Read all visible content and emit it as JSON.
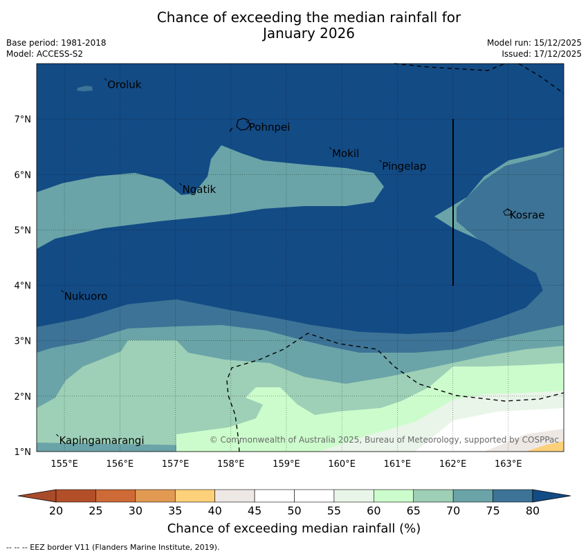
{
  "header": {
    "title_line1": "Chance of exceeding the median rainfall for",
    "title_line2": "January 2026",
    "base_period": "Base period: 1981-2018",
    "model": "Model: ACCESS-S2",
    "model_run": "Model run: 15/12/2025",
    "issued": "Issued: 17/12/2025"
  },
  "map": {
    "lon_range": [
      154.5,
      164.0
    ],
    "lat_range": [
      1.0,
      8.0
    ],
    "lon_ticks": [
      155,
      156,
      157,
      158,
      159,
      160,
      161,
      162,
      163
    ],
    "lon_tick_labels": [
      "155°E",
      "156°E",
      "157°E",
      "158°E",
      "159°E",
      "160°E",
      "161°E",
      "162°E",
      "163°E"
    ],
    "lat_ticks": [
      1,
      2,
      3,
      4,
      5,
      6,
      7
    ],
    "lat_tick_labels": [
      "1°N",
      "2°N",
      "3°N",
      "4°N",
      "5°N",
      "6°N",
      "7°N"
    ],
    "places": [
      {
        "name": "Oroluk",
        "lon": 155.75,
        "lat": 7.67
      },
      {
        "name": "Pohnpei",
        "lon": 158.3,
        "lat": 6.9
      },
      {
        "name": "Mokil",
        "lon": 159.8,
        "lat": 6.43
      },
      {
        "name": "Pingelap",
        "lon": 160.7,
        "lat": 6.2
      },
      {
        "name": "Ngatik",
        "lon": 157.1,
        "lat": 5.78
      },
      {
        "name": "Kosrae",
        "lon": 163.0,
        "lat": 5.32
      },
      {
        "name": "Nukuoro",
        "lon": 154.97,
        "lat": 3.85
      },
      {
        "name": "Kapingamarangi",
        "lon": 154.88,
        "lat": 1.25
      }
    ],
    "copyright": "© Commonwealth of Australia 2025, Bureau of Meteorology, supported by COSPPac"
  },
  "colorbar": {
    "ticks": [
      "20",
      "25",
      "30",
      "35",
      "40",
      "45",
      "50",
      "55",
      "60",
      "65",
      "70",
      "75",
      "80"
    ],
    "colors": [
      "#a84b2a",
      "#b34f28",
      "#ce6a35",
      "#e29a52",
      "#fdd07a",
      "#ede8e4",
      "#ffffff",
      "#ffffff",
      "#e9f5e8",
      "#ccfccc",
      "#9dd0b6",
      "#6aa4a8",
      "#3d7396",
      "#134b85"
    ],
    "label": "Chance of exceeding median rainfall (%)"
  },
  "legend_note": "--  --  -- EEZ border V11 (Flanders Marine Institute, 2019)."
}
